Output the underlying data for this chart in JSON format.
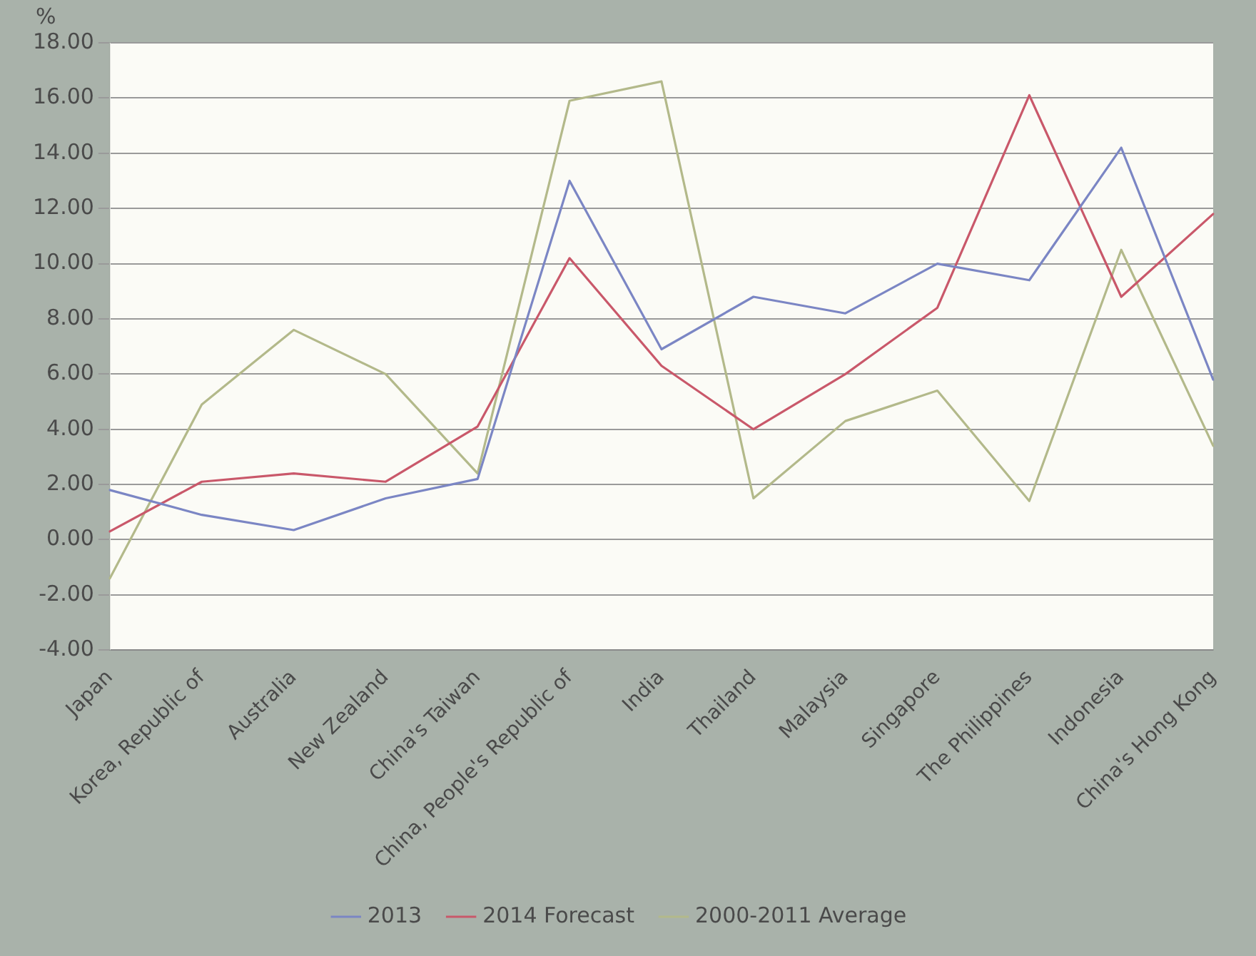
{
  "chart_data": {
    "type": "line",
    "ylabel": "%",
    "categories": [
      "Japan",
      "Korea, Republic of",
      "Australia",
      "New Zealand",
      "China's Taiwan",
      "China, People's Republic of",
      "India",
      "Thailand",
      "Malaysia",
      "Singapore",
      "The Philippines",
      "Indonesia",
      "China's Hong Kong"
    ],
    "series": [
      {
        "name": "2013",
        "color": "#7b86c4",
        "values": [
          1.8,
          0.9,
          0.35,
          1.5,
          2.2,
          13.0,
          6.9,
          8.8,
          8.2,
          10.0,
          9.4,
          14.2,
          5.8
        ]
      },
      {
        "name": "2014 Forecast",
        "color": "#c9586a",
        "values": [
          0.3,
          2.1,
          2.4,
          2.1,
          4.1,
          10.2,
          6.3,
          4.0,
          6.0,
          8.4,
          16.1,
          8.8,
          11.8
        ]
      },
      {
        "name": "2000-2011 Average",
        "color": "#b3b98a",
        "values": [
          -1.4,
          4.9,
          7.6,
          6.0,
          2.4,
          15.9,
          16.6,
          1.5,
          4.3,
          5.4,
          1.4,
          10.5,
          3.4
        ]
      }
    ],
    "ylim": [
      -4,
      18
    ],
    "yticks": [
      {
        "value": -4,
        "label": "-4.00"
      },
      {
        "value": -2,
        "label": "-2.00"
      },
      {
        "value": 0,
        "label": "0.00"
      },
      {
        "value": 2,
        "label": "2.00"
      },
      {
        "value": 4,
        "label": "4.00"
      },
      {
        "value": 6,
        "label": "6.00"
      },
      {
        "value": 8,
        "label": "8.00"
      },
      {
        "value": 10,
        "label": "10.00"
      },
      {
        "value": 12,
        "label": "12.00"
      },
      {
        "value": 14,
        "label": "14.00"
      },
      {
        "value": 16,
        "label": "16.00"
      },
      {
        "value": 18,
        "label": "18.00"
      }
    ],
    "grid": "y",
    "legend": "bottom",
    "marker": "none",
    "line_style": "solid"
  }
}
